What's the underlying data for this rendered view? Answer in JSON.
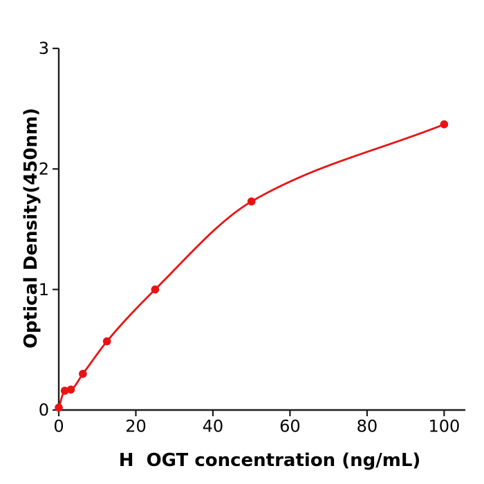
{
  "chart_data": {
    "type": "scatter",
    "subtype": "standard-curve-with-fit-line",
    "title": "",
    "xlabel": "H  OGT concentration (ng/mL)",
    "ylabel": "Optical Density(450nm)",
    "x": [
      0,
      1.56,
      3.13,
      6.25,
      12.5,
      25,
      50,
      100
    ],
    "y": [
      0.02,
      0.16,
      0.17,
      0.3,
      0.57,
      1.0,
      1.73,
      2.37
    ],
    "xlim": [
      0,
      105.5
    ],
    "ylim": [
      0,
      3
    ],
    "xticks": [
      0,
      20,
      40,
      60,
      80,
      100
    ],
    "yticks": [
      0,
      1,
      2,
      3
    ],
    "grid": false,
    "legend": null,
    "colors": {
      "marker": "#ea1313",
      "line": "#ea1313",
      "axis": "#1c1c1c",
      "text": "#000000",
      "background": "#ffffff"
    }
  }
}
